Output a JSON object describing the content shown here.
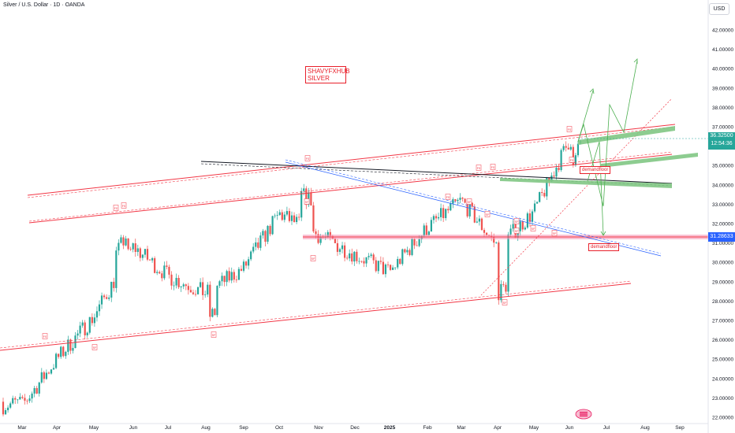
{
  "header": {
    "title": "Silver / U.S. Dollar · 1D · OANDA",
    "currency": "USD"
  },
  "annotations": {
    "brand_line1": "SHAVYFXHUB",
    "brand_line2": "SILVER",
    "demand_zone_upper": "demandfloor",
    "demand_zone_lower": "demandfloor",
    "fractal_up": "FS",
    "fractal_down": "SF"
  },
  "price_labels": {
    "current_price": "36.32500",
    "countdown": "12:54:36",
    "level_price": "31.28633"
  },
  "colors": {
    "bull": "#26a69a",
    "bear": "#ef5350",
    "channel": "#f23645",
    "trend_black": "#131722",
    "trend_blue": "#2962ff",
    "projection_green": "#4caf50",
    "zone_green": "#81c784",
    "zone_pink": "#f48fb1"
  },
  "chart_data": {
    "type": "candlestick",
    "symbol": "Silver / U.S. Dollar",
    "timeframe": "1D",
    "source": "OANDA",
    "y_axis": {
      "ticks": [
        "22.00000",
        "23.00000",
        "24.00000",
        "25.00000",
        "26.00000",
        "27.00000",
        "28.00000",
        "29.00000",
        "30.00000",
        "31.00000",
        "32.00000",
        "33.00000",
        "34.00000",
        "35.00000",
        "36.00000",
        "37.00000",
        "38.00000",
        "39.00000",
        "40.00000",
        "41.00000",
        "42.00000"
      ],
      "ylim": [
        21.8,
        42.6
      ]
    },
    "x_axis": {
      "ticks": [
        "Mar",
        "Apr",
        "May",
        "Jun",
        "Jul",
        "Aug",
        "Sep",
        "Oct",
        "Nov",
        "Dec",
        "2025",
        "Feb",
        "Mar",
        "Apr",
        "May",
        "Jun",
        "Jul",
        "Aug",
        "Sep"
      ]
    },
    "monthly_path": [
      {
        "month": "Mar",
        "price": 22.6
      },
      {
        "month": "Apr",
        "price": 25.0
      },
      {
        "month": "May",
        "price": 27.2
      },
      {
        "month": "Jun",
        "price": 30.8
      },
      {
        "month": "Jul",
        "price": 29.3
      },
      {
        "month": "Aug",
        "price": 28.4
      },
      {
        "month": "Sep",
        "price": 29.7
      },
      {
        "month": "Oct",
        "price": 32.5
      },
      {
        "month": "Nov",
        "price": 31.4
      },
      {
        "month": "Dec",
        "price": 30.4
      },
      {
        "month": "2025",
        "price": 29.5
      },
      {
        "month": "Feb",
        "price": 31.8
      },
      {
        "month": "Mar",
        "price": 33.2
      },
      {
        "month": "Apr",
        "price": 30.8
      },
      {
        "month": "May",
        "price": 32.6
      },
      {
        "month": "Jun",
        "price": 36.3
      }
    ],
    "key_levels": {
      "last_price": 36.325,
      "support_level": 31.28633,
      "demand_zone_upper": [
        34.0,
        34.3
      ]
    }
  }
}
